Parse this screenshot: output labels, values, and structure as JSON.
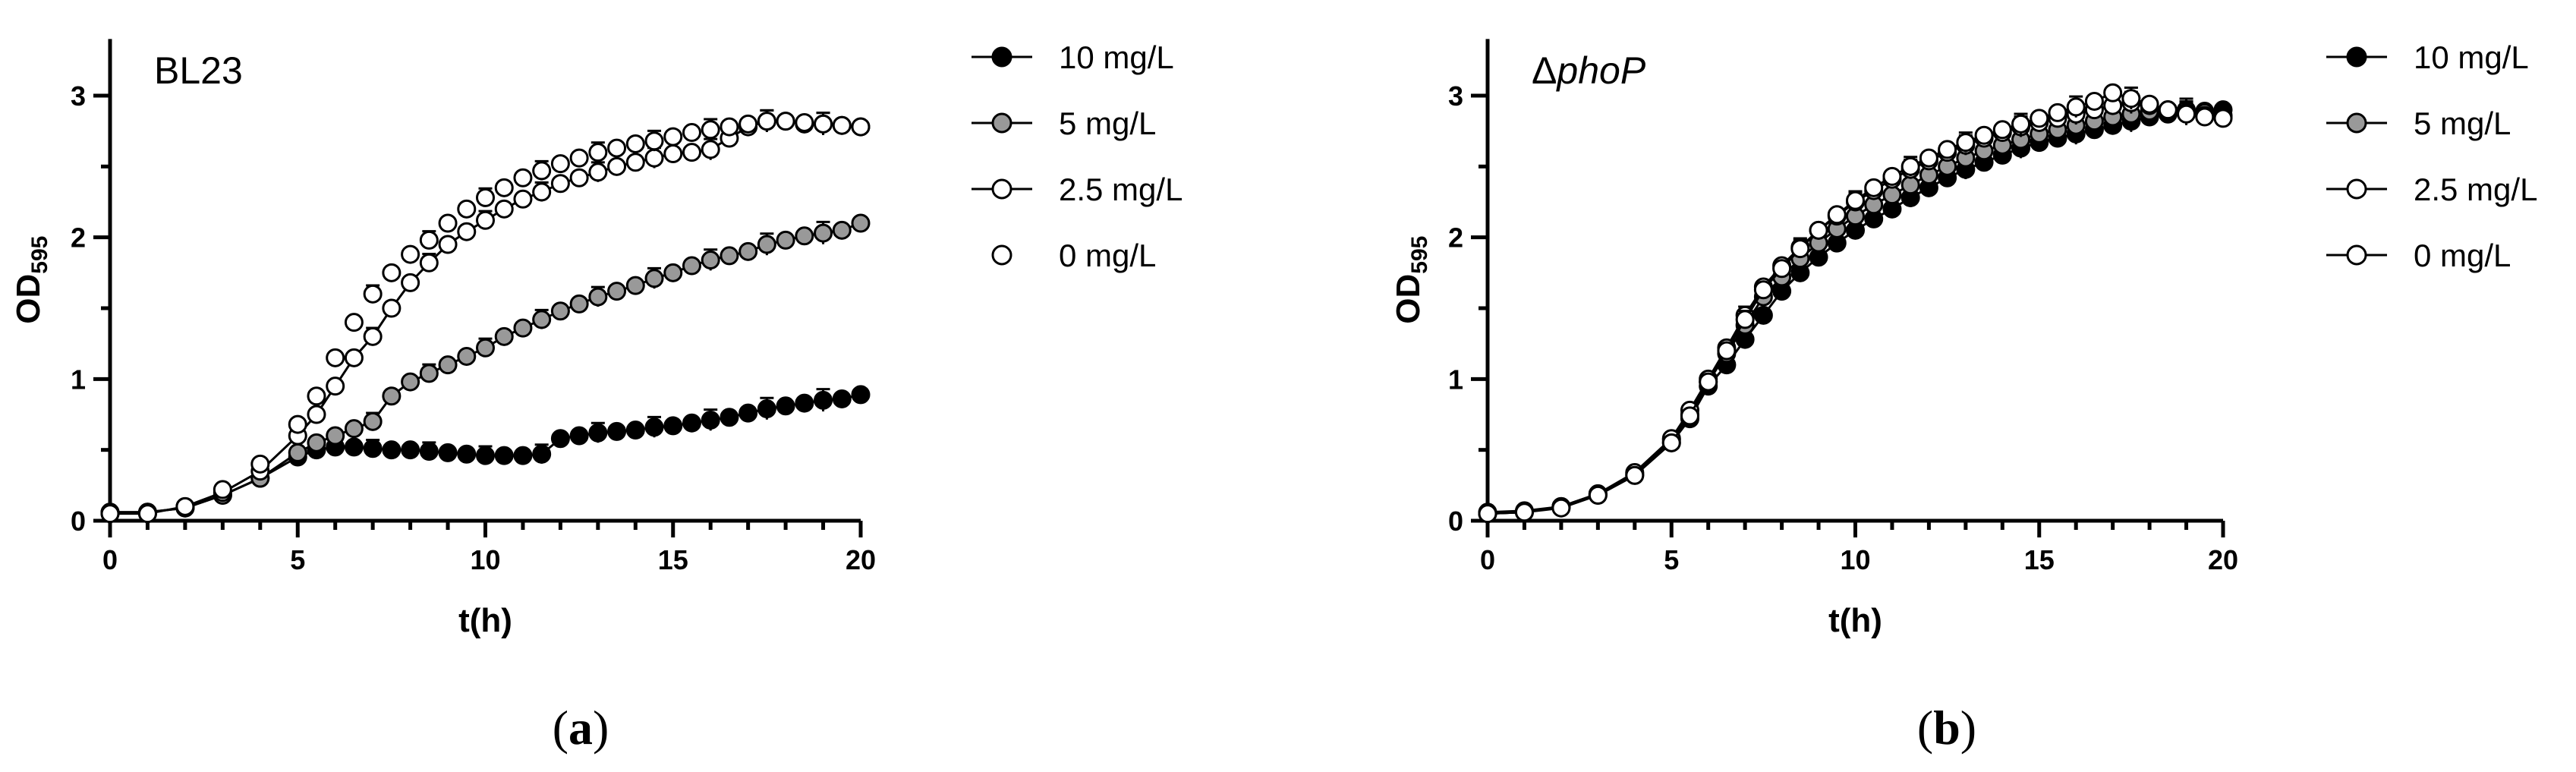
{
  "chart_data": [
    {
      "type": "line",
      "panel_label": "BL23",
      "panel_label_italic": false,
      "panel_label_prefix": "",
      "caption_letter": "a",
      "xlabel": "t(h)",
      "ylabel_main": "OD",
      "ylabel_sub": "595",
      "xlim": [
        0,
        20
      ],
      "ylim": [
        0,
        3.4
      ],
      "xticks": [
        "0",
        "5",
        "10",
        "15",
        "20"
      ],
      "yticks": [
        "0",
        "1",
        "2",
        "3"
      ],
      "grid": false,
      "legend_position": "right",
      "series": [
        {
          "name": "10 mg/L",
          "marker_fill": "#000000",
          "show_line": true,
          "x": [
            0,
            1,
            2,
            3,
            4,
            5,
            5.5,
            6,
            6.5,
            7,
            7.5,
            8,
            8.5,
            9,
            9.5,
            10,
            10.5,
            11,
            11.5,
            12,
            12.5,
            13,
            13.5,
            14,
            14.5,
            15,
            15.5,
            16,
            16.5,
            17,
            17.5,
            18,
            18.5,
            19,
            19.5,
            20
          ],
          "y": [
            0.06,
            0.06,
            0.09,
            0.18,
            0.3,
            0.45,
            0.5,
            0.52,
            0.52,
            0.51,
            0.5,
            0.5,
            0.49,
            0.48,
            0.47,
            0.46,
            0.46,
            0.46,
            0.47,
            0.58,
            0.6,
            0.62,
            0.63,
            0.64,
            0.66,
            0.67,
            0.69,
            0.71,
            0.73,
            0.76,
            0.79,
            0.81,
            0.83,
            0.85,
            0.86,
            0.89
          ]
        },
        {
          "name": "5 mg/L",
          "marker_fill": "#999999",
          "show_line": true,
          "x": [
            0,
            1,
            2,
            3,
            4,
            5,
            5.5,
            6,
            6.5,
            7,
            7.5,
            8,
            8.5,
            9,
            9.5,
            10,
            10.5,
            11,
            11.5,
            12,
            12.5,
            13,
            13.5,
            14,
            14.5,
            15,
            15.5,
            16,
            16.5,
            17,
            17.5,
            18,
            18.5,
            19,
            19.5,
            20
          ],
          "y": [
            0.06,
            0.06,
            0.09,
            0.18,
            0.3,
            0.48,
            0.55,
            0.6,
            0.65,
            0.7,
            0.88,
            0.98,
            1.04,
            1.1,
            1.16,
            1.22,
            1.3,
            1.36,
            1.42,
            1.48,
            1.53,
            1.58,
            1.62,
            1.66,
            1.71,
            1.75,
            1.8,
            1.84,
            1.87,
            1.9,
            1.95,
            1.98,
            2.01,
            2.03,
            2.05,
            2.1
          ]
        },
        {
          "name": "2.5 mg/L",
          "marker_fill": "#ffffff",
          "show_line": true,
          "x": [
            0,
            1,
            2,
            3,
            4,
            5,
            5.5,
            6,
            6.5,
            7,
            7.5,
            8,
            8.5,
            9,
            9.5,
            10,
            10.5,
            11,
            11.5,
            12,
            12.5,
            13,
            13.5,
            14,
            14.5,
            15,
            15.5,
            16,
            16.5,
            17,
            17.5,
            18,
            18.5,
            19,
            19.5,
            20
          ],
          "y": [
            0.05,
            0.05,
            0.1,
            0.2,
            0.35,
            0.6,
            0.75,
            0.95,
            1.15,
            1.3,
            1.5,
            1.68,
            1.82,
            1.95,
            2.04,
            2.12,
            2.2,
            2.27,
            2.32,
            2.38,
            2.42,
            2.46,
            2.5,
            2.53,
            2.56,
            2.59,
            2.6,
            2.62,
            2.7,
            2.78,
            2.82,
            2.82,
            2.8,
            2.8,
            2.79,
            2.78
          ]
        },
        {
          "name": "0 mg/L",
          "marker_fill": "#ffffff",
          "show_line": false,
          "x": [
            0,
            1,
            2,
            3,
            4,
            5,
            5.5,
            6,
            6.5,
            7,
            7.5,
            8,
            8.5,
            9,
            9.5,
            10,
            10.5,
            11,
            11.5,
            12,
            12.5,
            13,
            13.5,
            14,
            14.5,
            15,
            15.5,
            16,
            16.5,
            17,
            17.5,
            18,
            18.5,
            19,
            19.5,
            20
          ],
          "y": [
            0.05,
            0.05,
            0.1,
            0.22,
            0.4,
            0.68,
            0.88,
            1.15,
            1.4,
            1.6,
            1.75,
            1.88,
            1.98,
            2.1,
            2.2,
            2.28,
            2.35,
            2.42,
            2.47,
            2.52,
            2.56,
            2.6,
            2.63,
            2.66,
            2.68,
            2.71,
            2.74,
            2.76,
            2.78,
            2.8,
            2.82,
            2.82,
            2.81,
            2.8,
            2.79,
            2.78
          ]
        }
      ]
    },
    {
      "type": "line",
      "panel_label": "phoP",
      "panel_label_italic": true,
      "panel_label_prefix": "Δ",
      "caption_letter": "b",
      "xlabel": "t(h)",
      "ylabel_main": "OD",
      "ylabel_sub": "595",
      "xlim": [
        0,
        20
      ],
      "ylim": [
        0,
        3.4
      ],
      "xticks": [
        "0",
        "5",
        "10",
        "15",
        "20"
      ],
      "yticks": [
        "0",
        "1",
        "2",
        "3"
      ],
      "grid": false,
      "legend_position": "right",
      "series": [
        {
          "name": "10 mg/L",
          "marker_fill": "#000000",
          "show_line": true,
          "x": [
            0,
            1,
            2,
            3,
            4,
            5,
            5.5,
            6,
            6.5,
            7,
            7.5,
            8,
            8.5,
            9,
            9.5,
            10,
            10.5,
            11,
            11.5,
            12,
            12.5,
            13,
            13.5,
            14,
            14.5,
            15,
            15.5,
            16,
            16.5,
            17,
            17.5,
            18,
            18.5,
            19,
            19.5,
            20
          ],
          "y": [
            0.05,
            0.06,
            0.1,
            0.18,
            0.32,
            0.55,
            0.72,
            0.95,
            1.1,
            1.28,
            1.45,
            1.62,
            1.75,
            1.86,
            1.96,
            2.05,
            2.13,
            2.2,
            2.28,
            2.35,
            2.42,
            2.48,
            2.53,
            2.58,
            2.63,
            2.67,
            2.7,
            2.73,
            2.76,
            2.79,
            2.82,
            2.85,
            2.87,
            2.88,
            2.89,
            2.9
          ]
        },
        {
          "name": "5 mg/L",
          "marker_fill": "#999999",
          "show_line": true,
          "x": [
            0,
            1,
            2,
            3,
            4,
            5,
            5.5,
            6,
            6.5,
            7,
            7.5,
            8,
            8.5,
            9,
            9.5,
            10,
            10.5,
            11,
            11.5,
            12,
            12.5,
            13,
            13.5,
            14,
            14.5,
            15,
            15.5,
            16,
            16.5,
            17,
            17.5,
            18,
            18.5,
            19,
            19.5,
            20
          ],
          "y": [
            0.05,
            0.06,
            0.1,
            0.19,
            0.33,
            0.57,
            0.75,
            0.98,
            1.18,
            1.38,
            1.58,
            1.72,
            1.85,
            1.96,
            2.06,
            2.15,
            2.23,
            2.3,
            2.37,
            2.44,
            2.5,
            2.56,
            2.61,
            2.65,
            2.69,
            2.73,
            2.76,
            2.79,
            2.82,
            2.85,
            2.87,
            2.89,
            2.9,
            2.9,
            2.88,
            2.86
          ]
        },
        {
          "name": "2.5 mg/L",
          "marker_fill": "#ffffff",
          "show_line": true,
          "x": [
            0,
            1,
            2,
            3,
            4,
            5,
            5.5,
            6,
            6.5,
            7,
            7.5,
            8,
            8.5,
            9,
            9.5,
            10,
            10.5,
            11,
            11.5,
            12,
            12.5,
            13,
            13.5,
            14,
            14.5,
            15,
            15.5,
            16,
            16.5,
            17,
            17.5,
            18,
            18.5,
            19,
            19.5,
            20
          ],
          "y": [
            0.06,
            0.07,
            0.1,
            0.19,
            0.34,
            0.58,
            0.78,
            1.0,
            1.22,
            1.45,
            1.65,
            1.8,
            1.93,
            2.05,
            2.15,
            2.25,
            2.33,
            2.41,
            2.48,
            2.54,
            2.6,
            2.65,
            2.7,
            2.74,
            2.78,
            2.81,
            2.84,
            2.87,
            2.9,
            2.93,
            2.95,
            2.93,
            2.9,
            2.88,
            2.86,
            2.85
          ]
        },
        {
          "name": "0 mg/L",
          "marker_fill": "#ffffff",
          "show_line": true,
          "x": [
            0,
            1,
            2,
            3,
            4,
            5,
            5.5,
            6,
            6.5,
            7,
            7.5,
            8,
            8.5,
            9,
            9.5,
            10,
            10.5,
            11,
            11.5,
            12,
            12.5,
            13,
            13.5,
            14,
            14.5,
            15,
            15.5,
            16,
            16.5,
            17,
            17.5,
            18,
            18.5,
            19,
            19.5,
            20
          ],
          "y": [
            0.05,
            0.06,
            0.09,
            0.18,
            0.32,
            0.55,
            0.74,
            0.98,
            1.2,
            1.42,
            1.63,
            1.78,
            1.92,
            2.05,
            2.16,
            2.26,
            2.35,
            2.43,
            2.5,
            2.56,
            2.62,
            2.67,
            2.72,
            2.76,
            2.8,
            2.84,
            2.88,
            2.92,
            2.96,
            3.02,
            2.98,
            2.94,
            2.9,
            2.87,
            2.85,
            2.84
          ]
        }
      ]
    }
  ]
}
